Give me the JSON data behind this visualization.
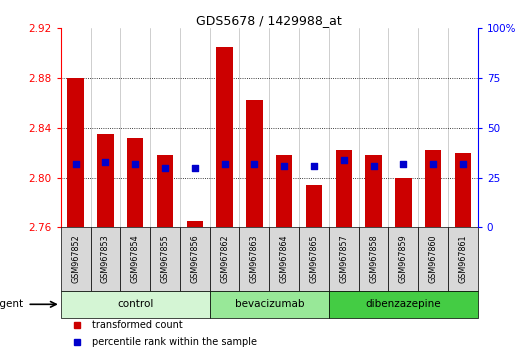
{
  "title": "GDS5678 / 1429988_at",
  "samples": [
    "GSM967852",
    "GSM967853",
    "GSM967854",
    "GSM967855",
    "GSM967856",
    "GSM967862",
    "GSM967863",
    "GSM967864",
    "GSM967865",
    "GSM967857",
    "GSM967858",
    "GSM967859",
    "GSM967860",
    "GSM967861"
  ],
  "transformed_count": [
    2.88,
    2.835,
    2.832,
    2.818,
    2.765,
    2.905,
    2.862,
    2.818,
    2.794,
    2.822,
    2.818,
    2.8,
    2.822,
    2.82
  ],
  "percentile_rank": [
    32,
    33,
    32,
    30,
    30,
    32,
    32,
    31,
    31,
    34,
    31,
    32,
    32,
    32
  ],
  "groups": [
    {
      "label": "control",
      "start": 0,
      "end": 5,
      "color": "#d4f5d4"
    },
    {
      "label": "bevacizumab",
      "start": 5,
      "end": 9,
      "color": "#98e898"
    },
    {
      "label": "dibenzazepine",
      "start": 9,
      "end": 14,
      "color": "#44cc44"
    }
  ],
  "ylim_left": [
    2.76,
    2.92
  ],
  "ylim_right": [
    0,
    100
  ],
  "yticks_left": [
    2.76,
    2.8,
    2.84,
    2.88,
    2.92
  ],
  "yticks_right": [
    0,
    25,
    50,
    75,
    100
  ],
  "bar_color": "#cc0000",
  "dot_color": "#0000cc",
  "bar_width": 0.55,
  "baseline": 2.76,
  "legend_items": [
    {
      "label": "transformed count",
      "color": "#cc0000"
    },
    {
      "label": "percentile rank within the sample",
      "color": "#0000cc"
    }
  ],
  "grid_yticks": [
    2.8,
    2.84,
    2.88
  ]
}
